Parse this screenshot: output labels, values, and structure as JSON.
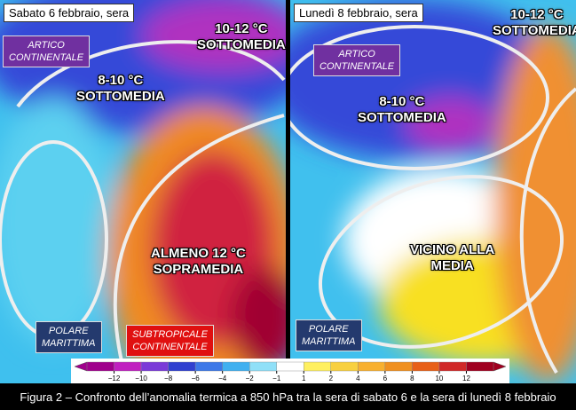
{
  "panels": [
    {
      "date": "Sabato 6 febbraio, sera",
      "labels": [
        {
          "lines": [
            "ARTICO",
            "CONTINENTALE"
          ]
        },
        {
          "lines": [
            "10-12 °C",
            "SOTTOMEDIA"
          ]
        },
        {
          "lines": [
            "8-10 °C",
            "SOTTOMEDIA"
          ]
        },
        {
          "lines": [
            "ALMENO 12 °C",
            "SOPRAMEDIA"
          ]
        },
        {
          "lines": [
            "POLARE",
            "MARITTIMA"
          ]
        },
        {
          "lines": [
            "SUBTROPICALE",
            "CONTINENTALE"
          ]
        }
      ]
    },
    {
      "date": "Lunedì 8 febbraio, sera",
      "labels": [
        {
          "lines": [
            "ARTICO",
            "CONTINENTALE"
          ]
        },
        {
          "lines": [
            "10-12 °C",
            "SOTTOMEDIA"
          ]
        },
        {
          "lines": [
            "8-10 °C",
            "SOTTOMEDIA"
          ]
        },
        {
          "lines": [
            "VICINO ALLA",
            "MEDIA"
          ]
        },
        {
          "lines": [
            "POLARE",
            "MARITTIMA"
          ]
        }
      ]
    }
  ],
  "colorbar": {
    "ticks": [
      "−12",
      "−10",
      "−8",
      "−6",
      "−4",
      "−2",
      "−1",
      "1",
      "2",
      "4",
      "6",
      "8",
      "10",
      "12"
    ]
  },
  "caption": "Figura 2 – Confronto dell’anomalia termica a 850 hPa tra la sera di sabato 6 e la sera di lunedì 8 febbraio"
}
